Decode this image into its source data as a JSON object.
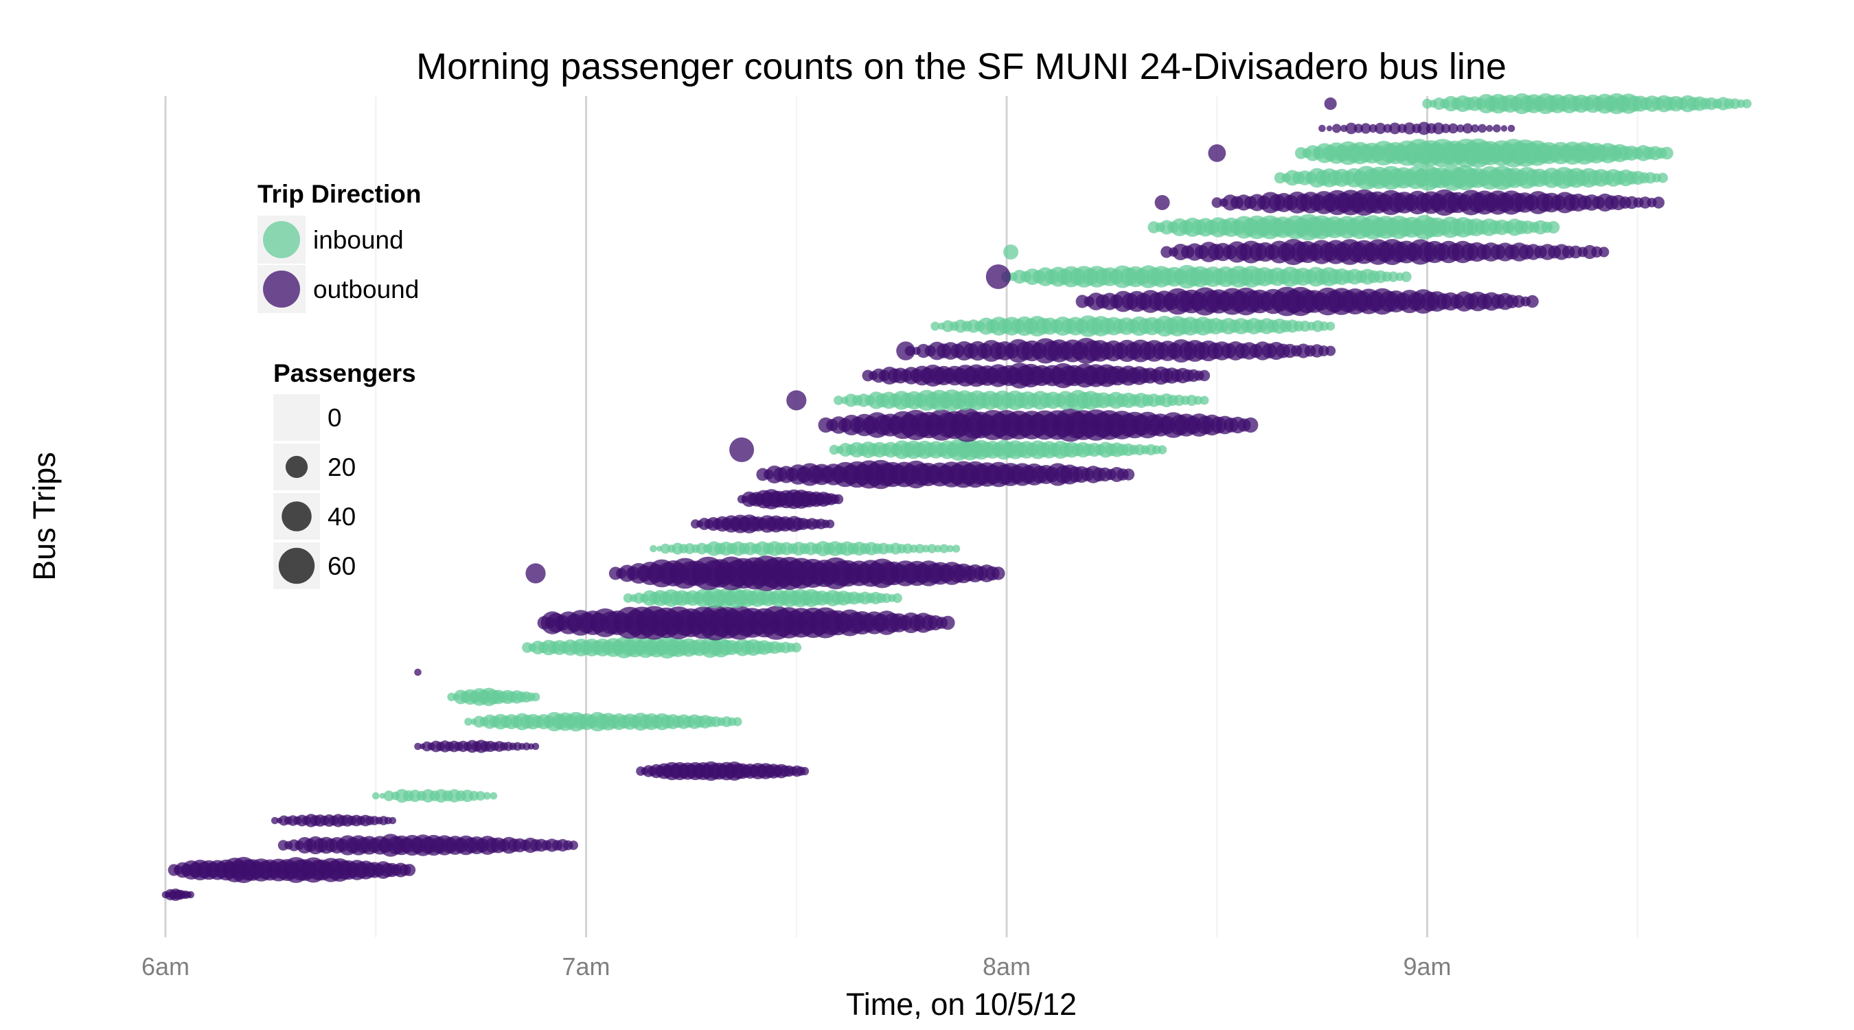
{
  "chart_data": {
    "type": "scatter",
    "title": "Morning passenger counts on the SF MUNI 24-Divisadero bus line",
    "xlabel": "Time, on 10/5/12",
    "ylabel": "Bus Trips",
    "x_ticks": [
      "6am",
      "7am",
      "8am",
      "9am"
    ],
    "x_tick_hours": [
      6,
      7,
      8,
      9
    ],
    "xlim_hours": [
      5.95,
      9.8
    ],
    "ylim_trips": [
      0.5,
      33.5
    ],
    "grid": true,
    "colors": {
      "inbound": "#66cc99",
      "outbound": "#3f0f6e"
    },
    "legend_direction": {
      "title": "Trip Direction",
      "items": [
        {
          "key": "inbound",
          "label": "inbound"
        },
        {
          "key": "outbound",
          "label": "outbound"
        }
      ]
    },
    "legend_size": {
      "title": "Passengers",
      "items": [
        {
          "label": "0",
          "value": 0
        },
        {
          "label": "20",
          "value": 20
        },
        {
          "label": "40",
          "value": 40
        },
        {
          "label": "60",
          "value": 60
        }
      ]
    },
    "trips": [
      {
        "trip": 1,
        "direction": "outbound",
        "start_hour": 6.0,
        "end_hour": 6.06,
        "peak": 5,
        "stops": 6
      },
      {
        "trip": 2,
        "direction": "outbound",
        "start_hour": 6.02,
        "end_hour": 6.58,
        "peak": 32,
        "stops": 28
      },
      {
        "trip": 3,
        "direction": "outbound",
        "start_hour": 6.28,
        "end_hour": 6.97,
        "peak": 22,
        "stops": 28
      },
      {
        "trip": 4,
        "direction": "outbound",
        "start_hour": 6.26,
        "end_hour": 6.54,
        "peak": 8,
        "stops": 14
      },
      {
        "trip": 5,
        "direction": "inbound",
        "start_hour": 6.5,
        "end_hour": 6.78,
        "peak": 8,
        "stops": 10
      },
      {
        "trip": 6,
        "direction": "outbound",
        "start_hour": 7.13,
        "end_hour": 7.52,
        "peak": 18,
        "stops": 22
      },
      {
        "trip": 7,
        "direction": "outbound",
        "start_hour": 6.6,
        "end_hour": 6.88,
        "peak": 6,
        "stops": 14
      },
      {
        "trip": 8,
        "direction": "inbound",
        "start_hour": 6.72,
        "end_hour": 7.36,
        "peak": 16,
        "stops": 26
      },
      {
        "trip": 9,
        "direction": "inbound",
        "start_hour": 6.68,
        "end_hour": 6.88,
        "peak": 14,
        "stops": 10
      },
      {
        "trip": 10,
        "direction": "outbound",
        "start_hour": 6.6,
        "end_hour": 6.6,
        "peak": 3,
        "stops": 1
      },
      {
        "trip": 11,
        "direction": "inbound",
        "start_hour": 6.86,
        "end_hour": 7.5,
        "peak": 22,
        "stops": 26
      },
      {
        "trip": 12,
        "direction": "outbound",
        "start_hour": 6.9,
        "end_hour": 7.86,
        "peak": 60,
        "stops": 34
      },
      {
        "trip": 13,
        "direction": "inbound",
        "start_hour": 7.1,
        "end_hour": 7.74,
        "peak": 18,
        "stops": 26
      },
      {
        "trip": 14,
        "direction": "outbound",
        "start_hour": 7.07,
        "end_hour": 7.98,
        "peak": 60,
        "stops": 34
      },
      {
        "trip": 15,
        "direction": "inbound",
        "start_hour": 7.16,
        "end_hour": 7.88,
        "peak": 10,
        "stops": 26
      },
      {
        "trip": 16,
        "direction": "outbound",
        "start_hour": 7.26,
        "end_hour": 7.58,
        "peak": 14,
        "stops": 16
      },
      {
        "trip": 17,
        "direction": "outbound",
        "start_hour": 7.37,
        "end_hour": 7.6,
        "peak": 18,
        "stops": 14
      },
      {
        "trip": 18,
        "direction": "outbound",
        "start_hour": 7.42,
        "end_hour": 8.29,
        "peak": 40,
        "stops": 32
      },
      {
        "trip": 19,
        "direction": "inbound",
        "start_hour": 7.59,
        "end_hour": 8.37,
        "peak": 20,
        "stops": 30
      },
      {
        "trip": 20,
        "direction": "outbound",
        "start_hour": 7.57,
        "end_hour": 8.58,
        "peak": 56,
        "stops": 34
      },
      {
        "trip": 21,
        "direction": "inbound",
        "start_hour": 7.6,
        "end_hour": 8.47,
        "peak": 22,
        "stops": 30
      },
      {
        "trip": 22,
        "direction": "outbound",
        "start_hour": 7.67,
        "end_hour": 8.47,
        "peak": 30,
        "stops": 32
      },
      {
        "trip": 23,
        "direction": "outbound",
        "start_hour": 7.77,
        "end_hour": 8.77,
        "peak": 30,
        "stops": 32
      },
      {
        "trip": 24,
        "direction": "inbound",
        "start_hour": 7.83,
        "end_hour": 8.77,
        "peak": 20,
        "stops": 32
      },
      {
        "trip": 25,
        "direction": "outbound",
        "start_hour": 8.18,
        "end_hour": 9.25,
        "peak": 40,
        "stops": 34
      },
      {
        "trip": 26,
        "direction": "inbound",
        "start_hour": 8.0,
        "end_hour": 8.95,
        "peak": 26,
        "stops": 32
      },
      {
        "trip": 27,
        "direction": "outbound",
        "start_hour": 8.38,
        "end_hour": 9.42,
        "peak": 32,
        "stops": 32
      },
      {
        "trip": 28,
        "direction": "inbound",
        "start_hour": 8.35,
        "end_hour": 9.3,
        "peak": 34,
        "stops": 32
      },
      {
        "trip": 29,
        "direction": "outbound",
        "start_hour": 8.5,
        "end_hour": 9.55,
        "peak": 34,
        "stops": 34
      },
      {
        "trip": 30,
        "direction": "inbound",
        "start_hour": 8.65,
        "end_hour": 9.56,
        "peak": 30,
        "stops": 32
      },
      {
        "trip": 31,
        "direction": "inbound",
        "start_hour": 8.7,
        "end_hour": 9.57,
        "peak": 40,
        "stops": 32
      },
      {
        "trip": 32,
        "direction": "outbound",
        "start_hour": 8.75,
        "end_hour": 9.2,
        "peak": 6,
        "stops": 14
      },
      {
        "trip": 33,
        "direction": "inbound",
        "start_hour": 9.0,
        "end_hour": 9.76,
        "peak": 20,
        "stops": 28
      }
    ],
    "isolated_points": [
      {
        "trip": 12,
        "direction": "outbound",
        "hour": 6.92,
        "passengers": 22
      },
      {
        "trip": 14,
        "direction": "outbound",
        "hour": 6.88,
        "passengers": 16
      },
      {
        "trip": 19,
        "direction": "outbound",
        "hour": 7.37,
        "passengers": 26
      },
      {
        "trip": 21,
        "direction": "outbound",
        "hour": 7.5,
        "passengers": 16
      },
      {
        "trip": 23,
        "direction": "outbound",
        "hour": 7.76,
        "passengers": 14
      },
      {
        "trip": 26,
        "direction": "outbound",
        "hour": 7.98,
        "passengers": 26
      },
      {
        "trip": 27,
        "direction": "inbound",
        "hour": 8.01,
        "passengers": 8
      },
      {
        "trip": 29,
        "direction": "outbound",
        "hour": 8.37,
        "passengers": 8
      },
      {
        "trip": 31,
        "direction": "outbound",
        "hour": 8.5,
        "passengers": 12
      },
      {
        "trip": 33,
        "direction": "outbound",
        "hour": 8.77,
        "passengers": 5
      }
    ]
  }
}
